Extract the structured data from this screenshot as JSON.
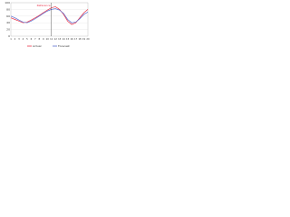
{
  "chart_data": {
    "type": "line",
    "categories": [
      "1",
      "2",
      "3",
      "4",
      "5",
      "6",
      "7",
      "8",
      "9",
      "10",
      "11",
      "12",
      "13",
      "14",
      "15",
      "16",
      "17",
      "18",
      "19",
      "20"
    ],
    "series": [
      {
        "name": "Actual",
        "color": "#e8344a",
        "values": [
          55,
          50,
          45,
          40,
          42,
          48,
          55,
          62,
          70,
          78,
          85,
          88,
          80,
          65,
          45,
          35,
          40,
          55,
          70,
          80
        ]
      },
      {
        "name": "Forecast",
        "color": "#5a6fd0",
        "values": [
          60,
          55,
          48,
          42,
          40,
          45,
          52,
          60,
          68,
          75,
          80,
          82,
          78,
          68,
          50,
          40,
          42,
          52,
          65,
          72
        ]
      }
    ],
    "annotation": {
      "text": "Reference",
      "category_index": 10
    },
    "ylim": [
      0,
      100
    ],
    "yticks": [
      0,
      20,
      40,
      60,
      80,
      100
    ],
    "grid": true
  }
}
